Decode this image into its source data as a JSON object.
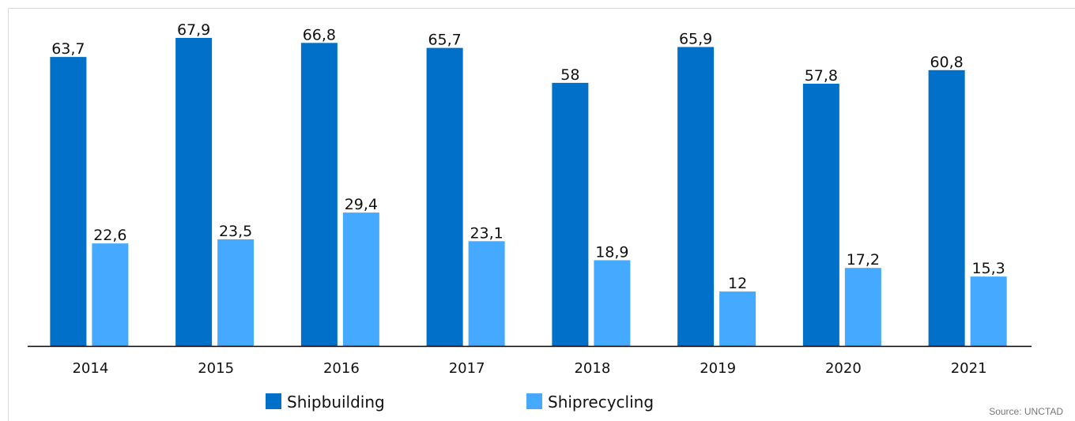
{
  "chart_data": {
    "type": "bar",
    "categories": [
      "2014",
      "2015",
      "2016",
      "2017",
      "2018",
      "2019",
      "2020",
      "2021"
    ],
    "series": [
      {
        "name": "Shipbuilding",
        "color": "#0070c8",
        "values": [
          63.7,
          67.9,
          66.8,
          65.7,
          58,
          65.9,
          57.8,
          60.8
        ],
        "value_labels": [
          "63,7",
          "67,9",
          "66,8",
          "65,7",
          "58",
          "65,9",
          "57,8",
          "60,8"
        ]
      },
      {
        "name": "Shiprecycling",
        "color": "#45aaff",
        "values": [
          22.6,
          23.5,
          29.4,
          23.1,
          18.9,
          12,
          17.2,
          15.3
        ],
        "value_labels": [
          "22,6",
          "23,5",
          "29,4",
          "23,1",
          "18,9",
          "12",
          "17,2",
          "15,3"
        ]
      }
    ],
    "legend": "bottom",
    "source": "Source: UNCTAD"
  }
}
